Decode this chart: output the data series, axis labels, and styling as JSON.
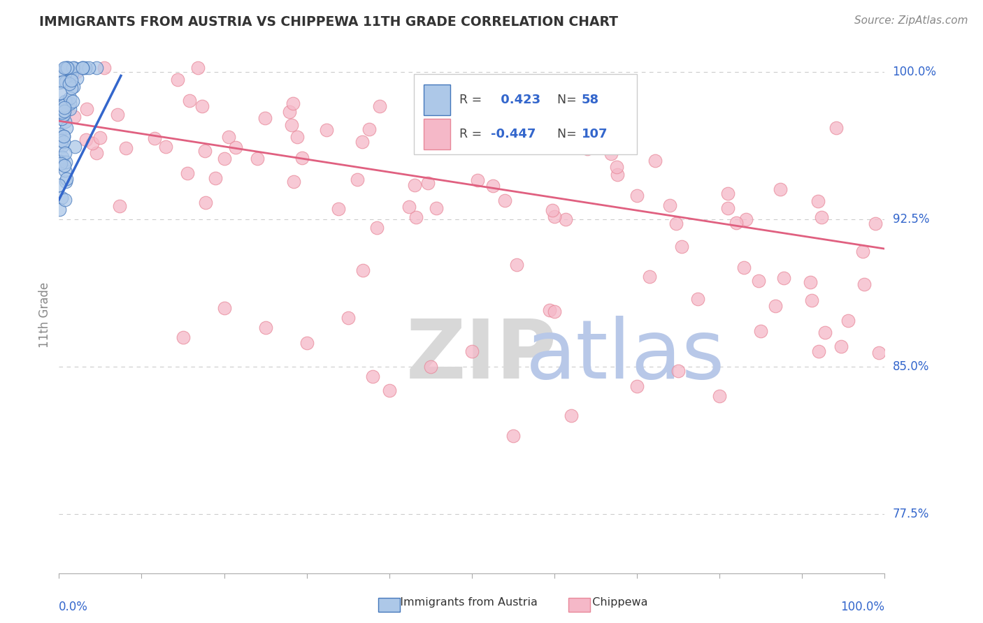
{
  "title": "IMMIGRANTS FROM AUSTRIA VS CHIPPEWA 11TH GRADE CORRELATION CHART",
  "source": "Source: ZipAtlas.com",
  "ylabel": "11th Grade",
  "R_blue": 0.423,
  "N_blue": 58,
  "R_pink": -0.447,
  "N_pink": 107,
  "blue_color": "#adc8e8",
  "blue_edge_color": "#4477bb",
  "blue_line_color": "#3366cc",
  "pink_color": "#f5b8c8",
  "pink_edge_color": "#e88899",
  "pink_line_color": "#e06080",
  "xmin": 0.0,
  "xmax": 1.0,
  "ymin": 0.745,
  "ymax": 1.008,
  "ytick_positions": [
    1.0,
    0.925,
    0.85,
    0.775
  ],
  "ytick_labels": [
    "100.0%",
    "92.5%",
    "85.0%",
    "77.5%"
  ],
  "pink_trend_x0": 0.0,
  "pink_trend_x1": 1.0,
  "pink_trend_y0": 0.975,
  "pink_trend_y1": 0.91,
  "blue_trend_x0": 0.0,
  "blue_trend_x1": 0.075,
  "blue_trend_y0": 0.935,
  "blue_trend_y1": 0.998,
  "legend_R_color": "#3366cc",
  "legend_N_color": "#3366cc",
  "watermark_ZIP_color": "#d8d8d8",
  "watermark_atlas_color": "#b8c8e8",
  "axis_label_color": "#3366cc",
  "title_color": "#333333",
  "source_color": "#888888",
  "grid_color": "#cccccc",
  "ylabel_color": "#888888"
}
